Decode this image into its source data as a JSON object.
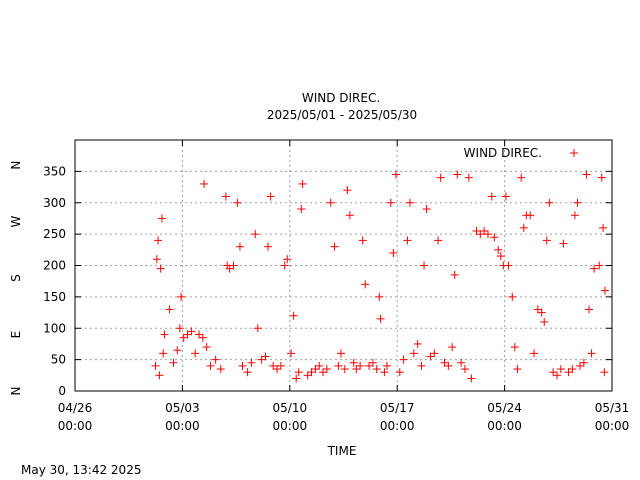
{
  "chart_data": {
    "type": "scatter",
    "title": "WIND DIREC.",
    "subtitle": "2025/05/01 - 2025/05/30",
    "xlabel": "TIME",
    "footer": "May 30, 13:42 2025",
    "legend": {
      "label": "WIND DIREC.",
      "position": "top-right"
    },
    "marker": "+",
    "color": "#ff0000",
    "grid": true,
    "xlim": [
      "2025-04-26 00:00",
      "2025-05-31 00:00"
    ],
    "ylim": [
      0,
      400
    ],
    "x_ticks": [
      {
        "date": "2025-04-26 00:00",
        "line1": "04/26",
        "line2": "00:00"
      },
      {
        "date": "2025-05-03 00:00",
        "line1": "05/03",
        "line2": "00:00"
      },
      {
        "date": "2025-05-10 00:00",
        "line1": "05/10",
        "line2": "00:00"
      },
      {
        "date": "2025-05-17 00:00",
        "line1": "05/17",
        "line2": "00:00"
      },
      {
        "date": "2025-05-24 00:00",
        "line1": "05/24",
        "line2": "00:00"
      },
      {
        "date": "2025-05-31 00:00",
        "line1": "05/31",
        "line2": "00:00"
      }
    ],
    "y_ticks": [
      0,
      50,
      100,
      150,
      200,
      250,
      300,
      350
    ],
    "compass_labels": [
      {
        "value": 0,
        "label": "N"
      },
      {
        "value": 90,
        "label": "E"
      },
      {
        "value": 180,
        "label": "S"
      },
      {
        "value": 270,
        "label": "W"
      },
      {
        "value": 360,
        "label": "N"
      }
    ],
    "series": [
      {
        "name": "WIND DIREC.",
        "points": [
          [
            "2025-05-01 06:00",
            40
          ],
          [
            "2025-05-01 12:00",
            25
          ],
          [
            "2025-05-01 18:00",
            60
          ],
          [
            "2025-05-01 08:00",
            210
          ],
          [
            "2025-05-01 10:00",
            240
          ],
          [
            "2025-05-01 14:00",
            195
          ],
          [
            "2025-05-01 16:00",
            275
          ],
          [
            "2025-05-01 20:00",
            90
          ],
          [
            "2025-05-02 04:00",
            130
          ],
          [
            "2025-05-02 10:00",
            45
          ],
          [
            "2025-05-02 16:00",
            65
          ],
          [
            "2025-05-02 20:00",
            100
          ],
          [
            "2025-05-02 22:00",
            150
          ],
          [
            "2025-05-03 02:00",
            85
          ],
          [
            "2025-05-03 08:00",
            90
          ],
          [
            "2025-05-03 14:00",
            95
          ],
          [
            "2025-05-03 20:00",
            60
          ],
          [
            "2025-05-04 02:00",
            90
          ],
          [
            "2025-05-04 08:00",
            85
          ],
          [
            "2025-05-04 14:00",
            70
          ],
          [
            "2025-05-04 20:00",
            40
          ],
          [
            "2025-05-04 10:00",
            330
          ],
          [
            "2025-05-05 04:00",
            50
          ],
          [
            "2025-05-05 12:00",
            35
          ],
          [
            "2025-05-05 20:00",
            310
          ],
          [
            "2025-05-05 22:00",
            200
          ],
          [
            "2025-05-06 02:00",
            195
          ],
          [
            "2025-05-06 08:00",
            200
          ],
          [
            "2025-05-06 14:00",
            300
          ],
          [
            "2025-05-06 18:00",
            230
          ],
          [
            "2025-05-06 22:00",
            40
          ],
          [
            "2025-05-07 06:00",
            30
          ],
          [
            "2025-05-07 12:00",
            45
          ],
          [
            "2025-05-07 18:00",
            250
          ],
          [
            "2025-05-07 22:00",
            100
          ],
          [
            "2025-05-08 04:00",
            50
          ],
          [
            "2025-05-08 10:00",
            55
          ],
          [
            "2025-05-08 14:00",
            230
          ],
          [
            "2025-05-08 18:00",
            310
          ],
          [
            "2025-05-08 22:00",
            40
          ],
          [
            "2025-05-09 04:00",
            35
          ],
          [
            "2025-05-09 10:00",
            40
          ],
          [
            "2025-05-09 16:00",
            200
          ],
          [
            "2025-05-09 20:00",
            210
          ],
          [
            "2025-05-10 02:00",
            60
          ],
          [
            "2025-05-10 06:00",
            120
          ],
          [
            "2025-05-10 10:00",
            20
          ],
          [
            "2025-05-10 14:00",
            30
          ],
          [
            "2025-05-10 18:00",
            290
          ],
          [
            "2025-05-10 20:00",
            330
          ],
          [
            "2025-05-11 04:00",
            25
          ],
          [
            "2025-05-11 10:00",
            30
          ],
          [
            "2025-05-11 16:00",
            35
          ],
          [
            "2025-05-11 22:00",
            40
          ],
          [
            "2025-05-12 04:00",
            30
          ],
          [
            "2025-05-12 10:00",
            35
          ],
          [
            "2025-05-12 16:00",
            300
          ],
          [
            "2025-05-12 22:00",
            230
          ],
          [
            "2025-05-13 04:00",
            40
          ],
          [
            "2025-05-13 08:00",
            60
          ],
          [
            "2025-05-13 14:00",
            35
          ],
          [
            "2025-05-13 18:00",
            320
          ],
          [
            "2025-05-13 22:00",
            280
          ],
          [
            "2025-05-14 04:00",
            45
          ],
          [
            "2025-05-14 08:00",
            35
          ],
          [
            "2025-05-14 14:00",
            40
          ],
          [
            "2025-05-14 18:00",
            240
          ],
          [
            "2025-05-14 22:00",
            170
          ],
          [
            "2025-05-15 04:00",
            40
          ],
          [
            "2025-05-15 10:00",
            45
          ],
          [
            "2025-05-15 16:00",
            35
          ],
          [
            "2025-05-15 20:00",
            150
          ],
          [
            "2025-05-15 22:00",
            115
          ],
          [
            "2025-05-16 04:00",
            30
          ],
          [
            "2025-05-16 08:00",
            40
          ],
          [
            "2025-05-16 14:00",
            300
          ],
          [
            "2025-05-16 18:00",
            220
          ],
          [
            "2025-05-16 22:00",
            345
          ],
          [
            "2025-05-17 04:00",
            30
          ],
          [
            "2025-05-17 10:00",
            50
          ],
          [
            "2025-05-17 16:00",
            240
          ],
          [
            "2025-05-17 20:00",
            300
          ],
          [
            "2025-05-18 02:00",
            60
          ],
          [
            "2025-05-18 08:00",
            75
          ],
          [
            "2025-05-18 14:00",
            40
          ],
          [
            "2025-05-18 18:00",
            200
          ],
          [
            "2025-05-18 22:00",
            290
          ],
          [
            "2025-05-19 04:00",
            55
          ],
          [
            "2025-05-19 10:00",
            60
          ],
          [
            "2025-05-19 16:00",
            240
          ],
          [
            "2025-05-19 20:00",
            340
          ],
          [
            "2025-05-20 02:00",
            45
          ],
          [
            "2025-05-20 08:00",
            40
          ],
          [
            "2025-05-20 14:00",
            70
          ],
          [
            "2025-05-20 18:00",
            185
          ],
          [
            "2025-05-20 22:00",
            345
          ],
          [
            "2025-05-21 04:00",
            45
          ],
          [
            "2025-05-21 10:00",
            35
          ],
          [
            "2025-05-21 16:00",
            340
          ],
          [
            "2025-05-21 20:00",
            20
          ],
          [
            "2025-05-22 04:00",
            255
          ],
          [
            "2025-05-22 10:00",
            250
          ],
          [
            "2025-05-22 16:00",
            255
          ],
          [
            "2025-05-22 22:00",
            250
          ],
          [
            "2025-05-23 04:00",
            310
          ],
          [
            "2025-05-23 08:00",
            245
          ],
          [
            "2025-05-23 14:00",
            225
          ],
          [
            "2025-05-23 18:00",
            215
          ],
          [
            "2025-05-23 22:00",
            200
          ],
          [
            "2025-05-24 02:00",
            310
          ],
          [
            "2025-05-24 06:00",
            200
          ],
          [
            "2025-05-24 12:00",
            150
          ],
          [
            "2025-05-24 16:00",
            70
          ],
          [
            "2025-05-24 20:00",
            35
          ],
          [
            "2025-05-25 02:00",
            340
          ],
          [
            "2025-05-25 06:00",
            260
          ],
          [
            "2025-05-25 10:00",
            280
          ],
          [
            "2025-05-25 16:00",
            280
          ],
          [
            "2025-05-25 22:00",
            60
          ],
          [
            "2025-05-26 04:00",
            130
          ],
          [
            "2025-05-26 10:00",
            125
          ],
          [
            "2025-05-26 14:00",
            110
          ],
          [
            "2025-05-26 18:00",
            240
          ],
          [
            "2025-05-26 22:00",
            300
          ],
          [
            "2025-05-27 04:00",
            30
          ],
          [
            "2025-05-27 10:00",
            25
          ],
          [
            "2025-05-27 16:00",
            35
          ],
          [
            "2025-05-27 20:00",
            235
          ],
          [
            "2025-05-28 04:00",
            30
          ],
          [
            "2025-05-28 10:00",
            35
          ],
          [
            "2025-05-28 14:00",
            280
          ],
          [
            "2025-05-28 18:00",
            300
          ],
          [
            "2025-05-28 22:00",
            40
          ],
          [
            "2025-05-29 04:00",
            45
          ],
          [
            "2025-05-29 08:00",
            345
          ],
          [
            "2025-05-29 12:00",
            130
          ],
          [
            "2025-05-29 16:00",
            60
          ],
          [
            "2025-05-29 20:00",
            195
          ],
          [
            "2025-05-30 04:00",
            200
          ],
          [
            "2025-05-30 08:00",
            340
          ],
          [
            "2025-05-30 10:00",
            260
          ],
          [
            "2025-05-30 12:00",
            30
          ],
          [
            "2025-05-30 13:00",
            160
          ]
        ]
      }
    ]
  }
}
